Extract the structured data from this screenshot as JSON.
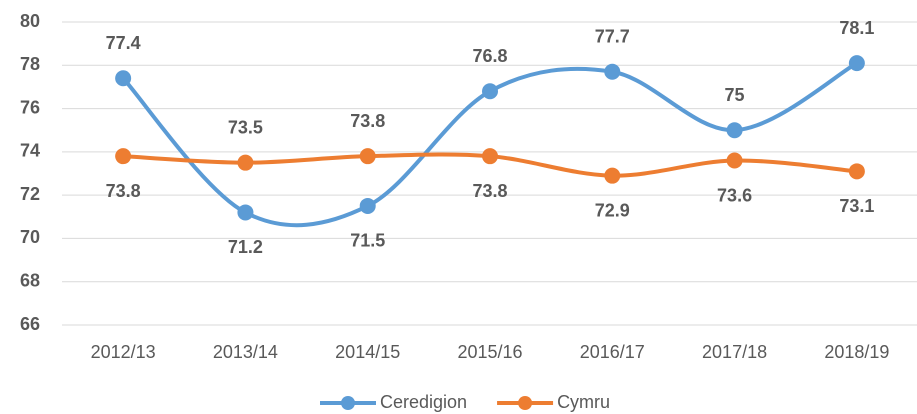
{
  "chart_data": {
    "type": "line",
    "categories": [
      "2012/13",
      "2013/14",
      "2014/15",
      "2015/16",
      "2016/17",
      "2017/18",
      "2018/19"
    ],
    "series": [
      {
        "name": "Ceredigion",
        "color": "#5b9bd5",
        "values": [
          77.4,
          71.2,
          71.5,
          76.8,
          77.7,
          75,
          78.1
        ]
      },
      {
        "name": "Cymru",
        "color": "#ed7d31",
        "values": [
          73.8,
          73.5,
          73.8,
          73.8,
          72.9,
          73.6,
          73.1
        ]
      }
    ],
    "ylim": [
      66,
      80
    ],
    "yticks": [
      66,
      68,
      70,
      72,
      74,
      76,
      78,
      80
    ],
    "grid": true,
    "smooth": true,
    "legend": "bottom"
  }
}
